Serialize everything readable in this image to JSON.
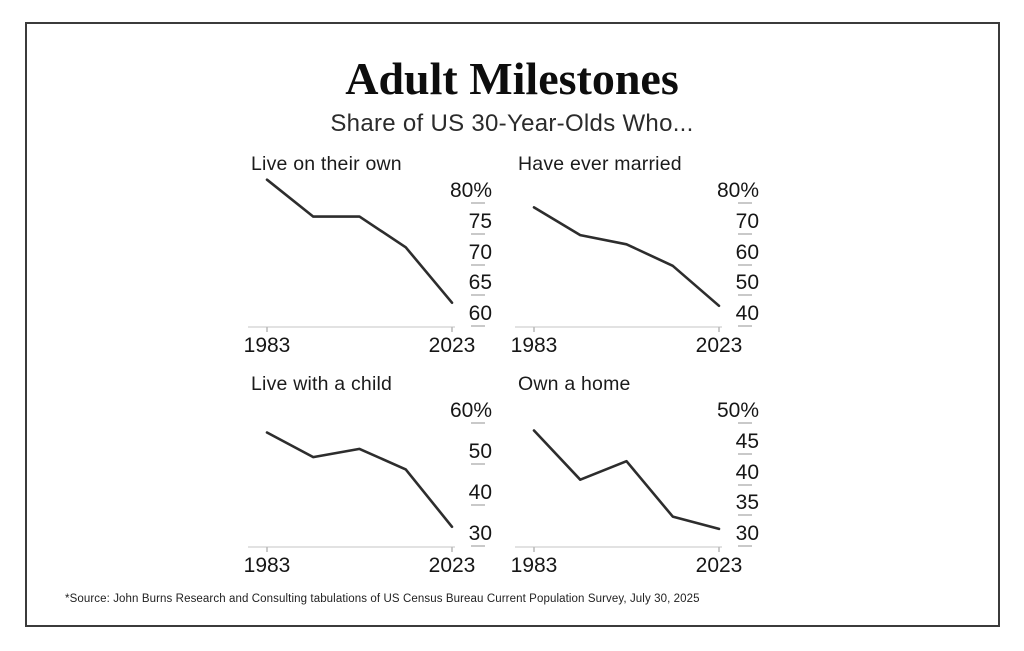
{
  "header": {
    "title": "Adult Milestones",
    "subtitle": "Share of US 30-Year-Olds Who..."
  },
  "footer": {
    "source": "*Source: John Burns Research and Consulting tabulations of US Census Bureau Current Population Survey, July 30, 2025"
  },
  "colors": {
    "line": "#2d2d2d",
    "axis": "#d8d8d8",
    "tick": "#b9b9b9",
    "border": "#3b3b3b",
    "text": "#161616"
  },
  "chart_data": [
    {
      "type": "line",
      "title": "Live on their own",
      "x": [
        1983,
        1993,
        2003,
        2013,
        2023
      ],
      "values": [
        82,
        76,
        76,
        71,
        62
      ],
      "ylim": [
        60,
        80
      ],
      "yticks": [
        {
          "value": 80,
          "label": "80%"
        },
        {
          "value": 75,
          "label": "75"
        },
        {
          "value": 70,
          "label": "70"
        },
        {
          "value": 65,
          "label": "65"
        },
        {
          "value": 60,
          "label": "60"
        }
      ],
      "xtick_labels": [
        "1983",
        "2023"
      ],
      "grid": false,
      "legend": false,
      "line_color": "#2d2d2d"
    },
    {
      "type": "line",
      "title": "Have ever married",
      "x": [
        1983,
        1993,
        2003,
        2013,
        2023
      ],
      "values": [
        75,
        66,
        63,
        56,
        43
      ],
      "ylim": [
        40,
        80
      ],
      "yticks": [
        {
          "value": 80,
          "label": "80%"
        },
        {
          "value": 70,
          "label": "70"
        },
        {
          "value": 60,
          "label": "60"
        },
        {
          "value": 50,
          "label": "50"
        },
        {
          "value": 40,
          "label": "40"
        }
      ],
      "xtick_labels": [
        "1983",
        "2023"
      ],
      "grid": false,
      "legend": false,
      "line_color": "#2d2d2d"
    },
    {
      "type": "line",
      "title": "Live with a child",
      "x": [
        1983,
        1993,
        2003,
        2013,
        2023
      ],
      "values": [
        55,
        49,
        51,
        46,
        32
      ],
      "ylim": [
        30,
        60
      ],
      "yticks": [
        {
          "value": 60,
          "label": "60%"
        },
        {
          "value": 50,
          "label": "50"
        },
        {
          "value": 40,
          "label": "40"
        },
        {
          "value": 30,
          "label": "30"
        }
      ],
      "xtick_labels": [
        "1983",
        "2023"
      ],
      "grid": false,
      "legend": false,
      "line_color": "#2d2d2d"
    },
    {
      "type": "line",
      "title": "Own a home",
      "x": [
        1983,
        1993,
        2003,
        2013,
        2023
      ],
      "values": [
        47,
        39,
        42,
        33,
        31
      ],
      "ylim": [
        30,
        50
      ],
      "yticks": [
        {
          "value": 50,
          "label": "50%"
        },
        {
          "value": 45,
          "label": "45"
        },
        {
          "value": 40,
          "label": "40"
        },
        {
          "value": 35,
          "label": "35"
        },
        {
          "value": 30,
          "label": "30"
        }
      ],
      "xtick_labels": [
        "1983",
        "2023"
      ],
      "grid": false,
      "legend": false,
      "line_color": "#2d2d2d"
    }
  ]
}
